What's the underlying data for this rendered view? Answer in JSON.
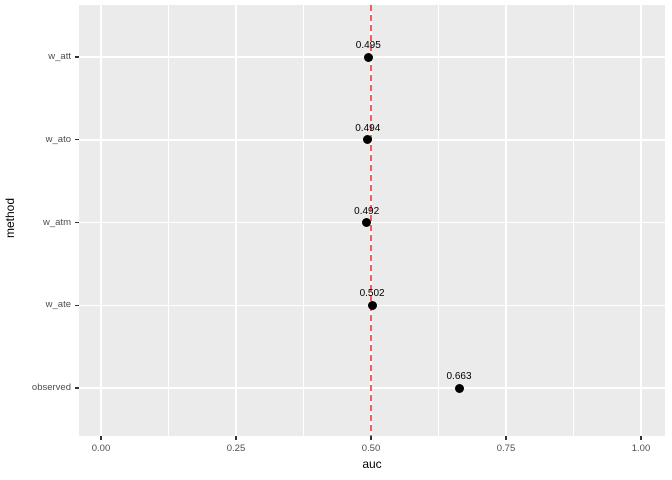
{
  "chart_data": {
    "type": "scatter",
    "title": "",
    "xlabel": "auc",
    "ylabel": "method",
    "categories_top_to_bottom": [
      "w_att",
      "w_ato",
      "w_atm",
      "w_ate",
      "observed"
    ],
    "series": [
      {
        "name": "auc_by_method",
        "points": [
          {
            "category": "w_att",
            "x": 0.495,
            "label": "0.495"
          },
          {
            "category": "w_ato",
            "x": 0.494,
            "label": "0.494"
          },
          {
            "category": "w_atm",
            "x": 0.492,
            "label": "0.492"
          },
          {
            "category": "w_ate",
            "x": 0.502,
            "label": "0.502"
          },
          {
            "category": "observed",
            "x": 0.663,
            "label": "0.663"
          }
        ]
      }
    ],
    "x_ticks": [
      {
        "value": 0.0,
        "label": "0.00"
      },
      {
        "value": 0.25,
        "label": "0.25"
      },
      {
        "value": 0.5,
        "label": "0.50"
      },
      {
        "value": 0.75,
        "label": "0.75"
      },
      {
        "value": 1.0,
        "label": "1.00"
      }
    ],
    "x_minor_ticks": [
      0.125,
      0.375,
      0.625,
      0.875
    ],
    "xlim": [
      -0.041,
      1.044
    ],
    "grid": true,
    "legend": "none",
    "reference_line": {
      "value": 0.5,
      "orientation": "vertical",
      "style": "dashed"
    }
  },
  "style": {
    "background": "#FFFFFF",
    "panel_bg": "#EBEBEB",
    "grid_color": "#FFFFFF",
    "point_color": "#000000",
    "point_label_color": "#000000",
    "ref_line_color": "#F25E5E",
    "ref_line_gap_color": "#FFFFFF",
    "tick_color": "#333333",
    "tick_label_color": "#4D4D4D",
    "axis_title_color": "#000000"
  }
}
